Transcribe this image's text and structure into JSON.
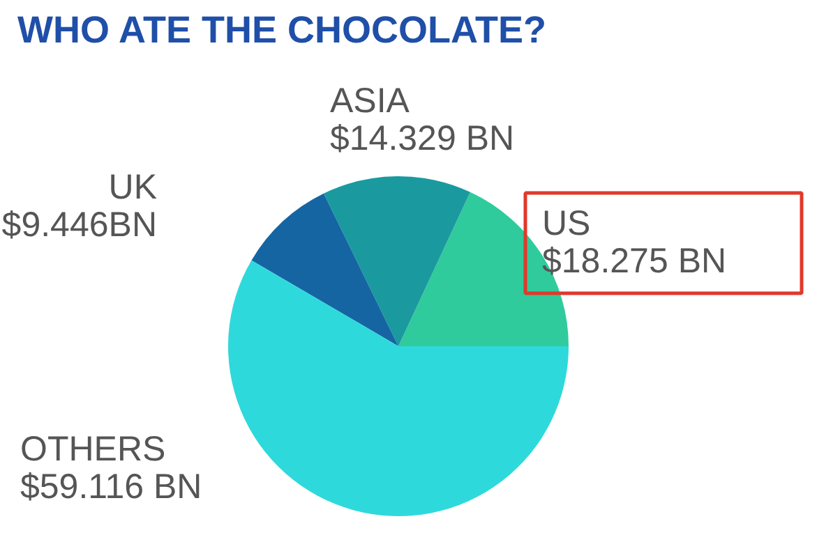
{
  "chart_data": {
    "type": "pie",
    "title": "WHO ATE THE CHOCOLATE?",
    "categories": [
      "US",
      "ASIA",
      "UK",
      "OTHERS"
    ],
    "values": [
      18.275,
      14.329,
      9.446,
      59.116
    ],
    "value_labels": [
      "$18.275 BN",
      "$14.329 BN",
      "$9.446BN",
      "$59.116 BN"
    ],
    "colors": [
      "#2fcb9c",
      "#1a9a9f",
      "#1565a3",
      "#2ed9dc"
    ]
  }
}
